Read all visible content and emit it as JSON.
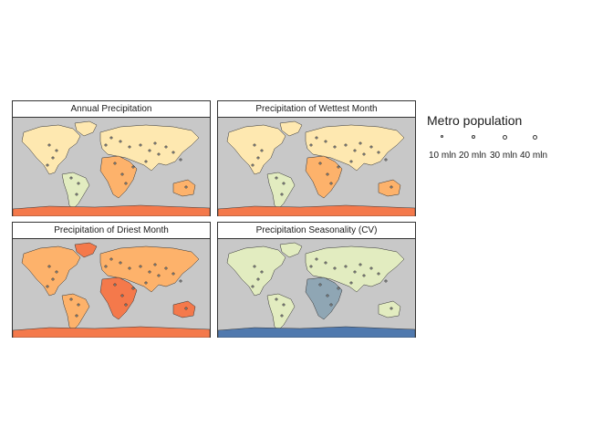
{
  "panels": [
    {
      "title": "Annual Precipitation",
      "palette": "orange"
    },
    {
      "title": "Precipitation of Wettest Month",
      "palette": "orange"
    },
    {
      "title": "Precipitation of Driest Month",
      "palette": "orange-dark"
    },
    {
      "title": "Precipitation Seasonality (CV)",
      "palette": "green-blue"
    }
  ],
  "legend": {
    "title": "Metro population",
    "entries": [
      "10 mln",
      "20 mln",
      "30 mln",
      "40 mln"
    ]
  },
  "colors": {
    "ocean": "#c8c8c8",
    "border": "#333333",
    "orange_light": "#fee8b0",
    "orange_mid": "#fdb26b",
    "orange_dark": "#f4794b",
    "pale_green": "#e2ecc0",
    "blue_gray": "#8fa6b4",
    "deep_blue": "#5079ae"
  }
}
